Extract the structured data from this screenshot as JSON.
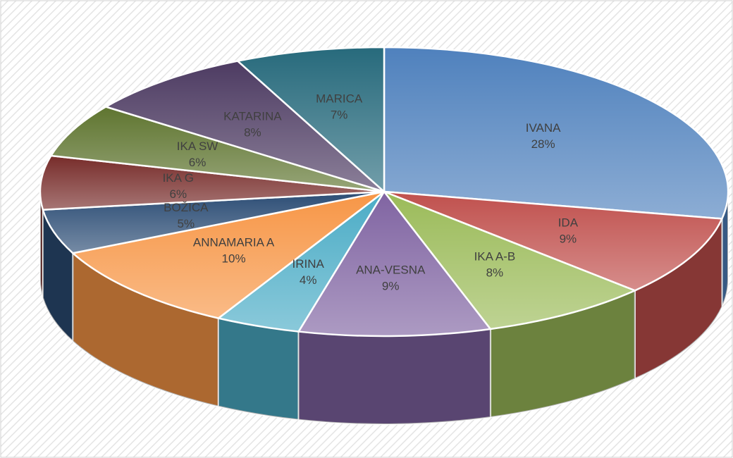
{
  "chart_data": {
    "type": "pie3d",
    "categories": [
      "IVANA",
      "IDA",
      "IKA A-B",
      "ANA-VESNA",
      "IRINA",
      "ANNAMARIA A",
      "BOŽICA",
      "IKA G",
      "IKA SW",
      "KATARINA",
      "MARICA"
    ],
    "values": [
      28,
      9,
      8,
      9,
      4,
      10,
      5,
      6,
      6,
      8,
      7
    ],
    "value_labels": [
      "28%",
      "9%",
      "8%",
      "9%",
      "4%",
      "10%",
      "5%",
      "6%",
      "6%",
      "8%",
      "7%"
    ],
    "colors": [
      "#4f81bd",
      "#c0504d",
      "#9bbb59",
      "#8064a2",
      "#4bacc6",
      "#f79646",
      "#2c4d75",
      "#772c2a",
      "#5f7530",
      "#4d3b62",
      "#276a7c"
    ]
  }
}
